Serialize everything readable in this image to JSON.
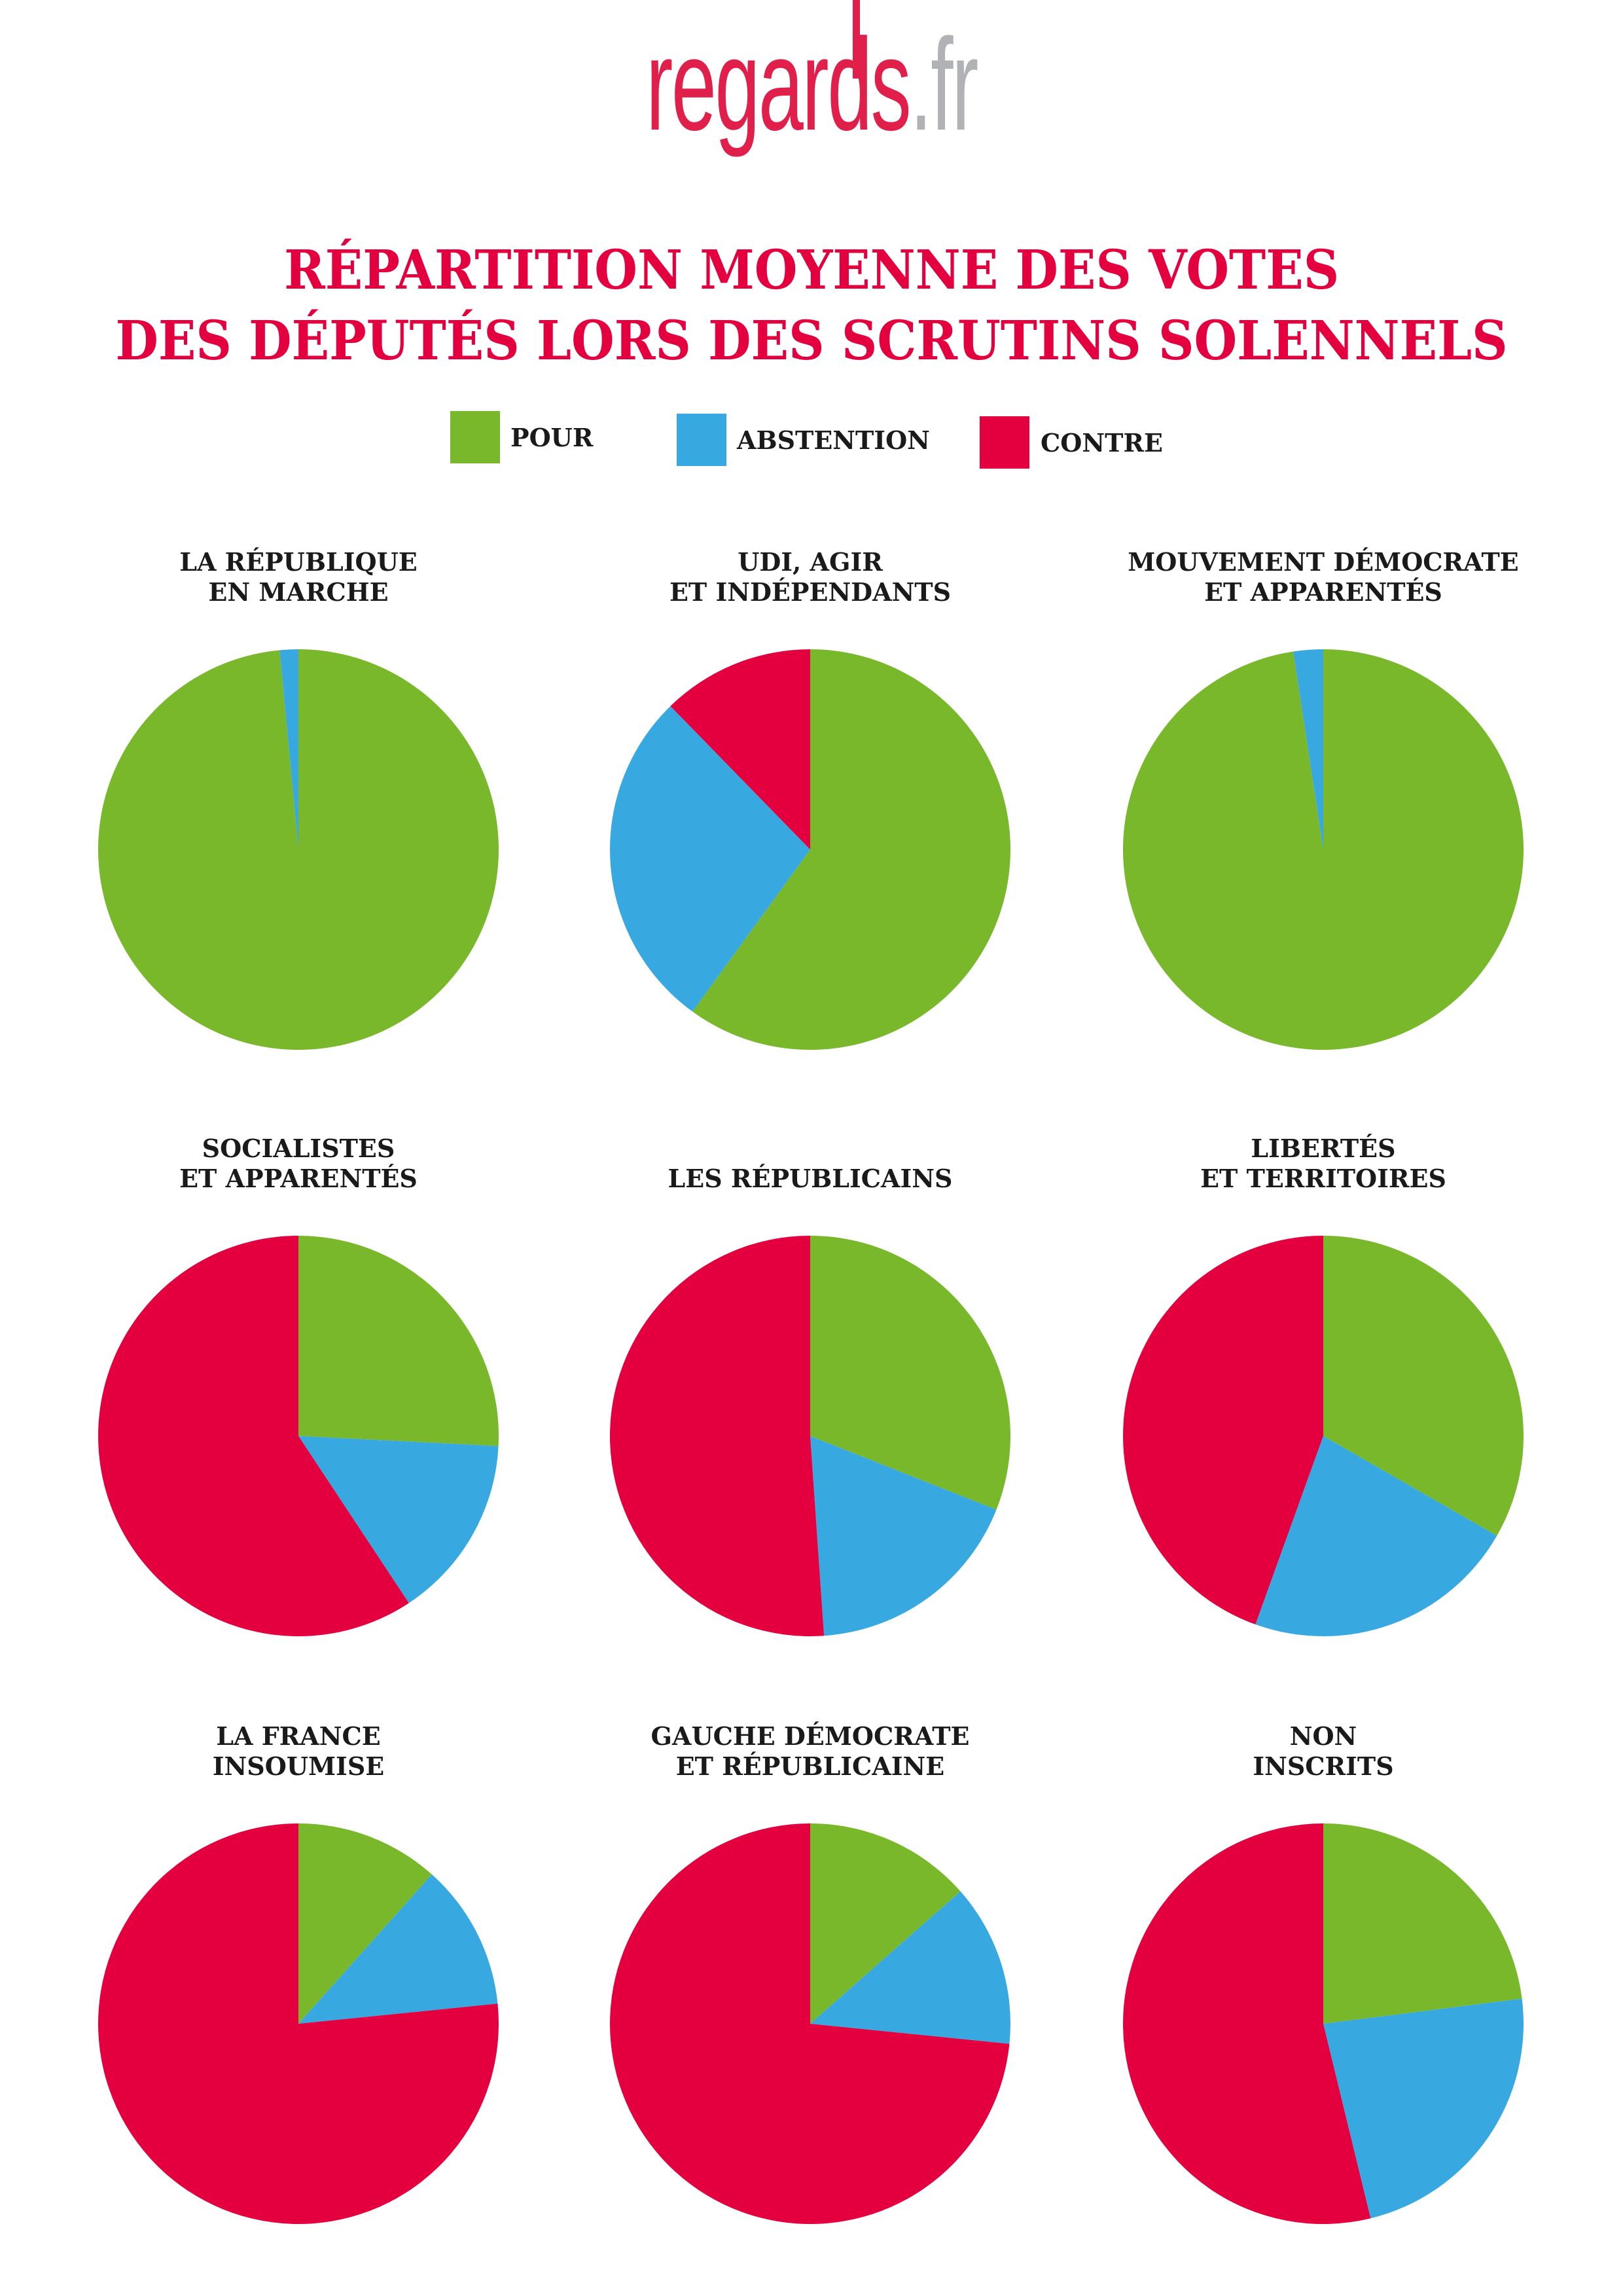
{
  "logo": {
    "main": "regards",
    "tld": ".fr"
  },
  "title": {
    "line1": "RÉPARTITION MOYENNE DES VOTES",
    "line2": "DES DÉPUTÉS LORS DES SCRUTINS SOLENNELS"
  },
  "colors": {
    "pour": "#78b82a",
    "abstention": "#38a9e0",
    "contre": "#e4003f",
    "title": "#e4003f"
  },
  "chart_data": {
    "type": "pie",
    "legend": [
      "POUR",
      "ABSTENTION",
      "CONTRE"
    ],
    "legend_placement": "top",
    "categories": [
      "POUR",
      "ABSTENTION",
      "CONTRE"
    ],
    "charts": [
      {
        "title_line1": "LA RÉPUBLIQUE",
        "title_line2": "EN MARCHE",
        "values": [
          98.5,
          1.5,
          0
        ]
      },
      {
        "title_line1": "UDI, AGIR",
        "title_line2": "ET INDÉPENDANTS",
        "values": [
          60.0,
          27.7,
          12.3
        ]
      },
      {
        "title_line1": "MOUVEMENT DÉMOCRATE",
        "title_line2": "ET APPARENTÉS",
        "values": [
          97.6,
          2.4,
          0
        ]
      },
      {
        "title_line1": "SOCIALISTES",
        "title_line2": "ET APPARENTÉS",
        "values": [
          25.8,
          14.9,
          59.3
        ]
      },
      {
        "title_line1": "LES RÉPUBLICAINS",
        "title_line2": "",
        "values": [
          31.0,
          17.9,
          51.1
        ]
      },
      {
        "title_line1": "LIBERTÉS",
        "title_line2": "ET TERRITOIRES",
        "values": [
          33.3,
          22.2,
          44.5
        ]
      },
      {
        "title_line1": "LA FRANCE",
        "title_line2": "INSOUMISE",
        "values": [
          11.6,
          11.8,
          76.6
        ]
      },
      {
        "title_line1": "GAUCHE DÉMOCRATE",
        "title_line2": "ET RÉPUBLICAINE",
        "values": [
          13.5,
          13.1,
          73.4
        ]
      },
      {
        "title_line1": "NON",
        "title_line2": "INSCRITS",
        "values": [
          23.0,
          23.2,
          53.8
        ]
      }
    ]
  }
}
